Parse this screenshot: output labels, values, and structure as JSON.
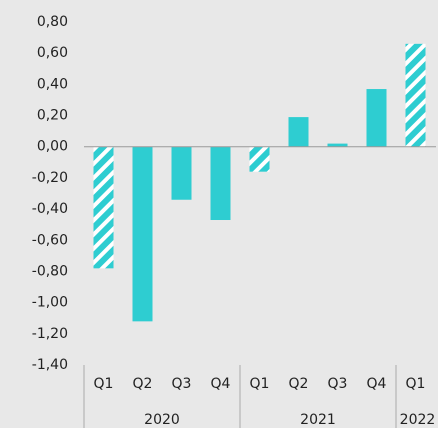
{
  "chart_data": {
    "type": "bar",
    "color": "#2ecdd1",
    "groups": [
      {
        "name": "2020",
        "categories": [
          "Q1",
          "Q2",
          "Q3",
          "Q4"
        ],
        "values": [
          -0.78,
          -1.12,
          -0.34,
          -0.47
        ],
        "hatched": [
          true,
          false,
          false,
          false
        ]
      },
      {
        "name": "2021",
        "categories": [
          "Q1",
          "Q2",
          "Q3",
          "Q4"
        ],
        "values": [
          -0.16,
          0.19,
          0.02,
          0.37
        ],
        "hatched": [
          true,
          false,
          false,
          false
        ]
      },
      {
        "name": "2022",
        "categories": [
          "Q1"
        ],
        "values": [
          0.66
        ],
        "hatched": [
          true
        ]
      }
    ],
    "ylim": [
      -1.4,
      0.8
    ],
    "yticks": [
      {
        "value": 0.8,
        "label": "0,80"
      },
      {
        "value": 0.6,
        "label": "0,60"
      },
      {
        "value": 0.4,
        "label": "0,40"
      },
      {
        "value": 0.2,
        "label": "0,20"
      },
      {
        "value": 0,
        "label": "0,00"
      },
      {
        "value": -0.2,
        "label": "-0,20"
      },
      {
        "value": -0.4,
        "label": "-0,40"
      },
      {
        "value": -0.6,
        "label": "-0,60"
      },
      {
        "value": -0.8,
        "label": "-0,80"
      },
      {
        "value": -1.0,
        "label": "-1,00"
      },
      {
        "value": -1.2,
        "label": "-1,20"
      },
      {
        "value": -1.4,
        "label": "-1,40"
      }
    ]
  }
}
